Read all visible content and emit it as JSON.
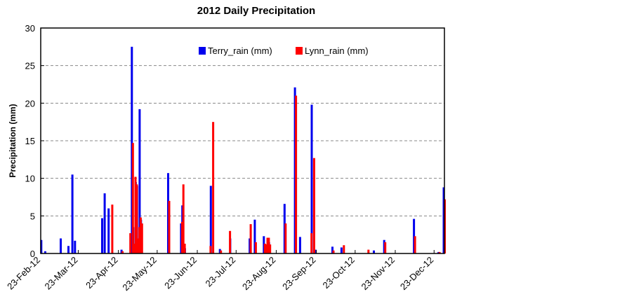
{
  "chart_data": {
    "type": "bar",
    "title": "2012 Daily Precipitation",
    "xlabel": "",
    "ylabel": "Precipitation (mm)",
    "ylim": [
      0,
      30
    ],
    "yticks": [
      0,
      5,
      10,
      15,
      20,
      25,
      30
    ],
    "xlim": [
      "2012-02-23",
      "2012-12-31"
    ],
    "xticks": [
      {
        "date": "2012-02-23",
        "label": "23-Feb-12"
      },
      {
        "date": "2012-03-23",
        "label": "23-Mar-12"
      },
      {
        "date": "2012-04-23",
        "label": "23-Apr-12"
      },
      {
        "date": "2012-05-23",
        "label": "23-May-12"
      },
      {
        "date": "2012-06-23",
        "label": "23-Jun-12"
      },
      {
        "date": "2012-07-23",
        "label": "23-Jul-12"
      },
      {
        "date": "2012-08-23",
        "label": "23-Aug-12"
      },
      {
        "date": "2012-09-23",
        "label": "23-Sep-12"
      },
      {
        "date": "2012-10-23",
        "label": "23-Oct-12"
      },
      {
        "date": "2012-11-23",
        "label": "23-Nov-12"
      },
      {
        "date": "2012-12-23",
        "label": "23-Dec-12"
      }
    ],
    "grid": "horizontal dashed",
    "legend_position": "top-center",
    "series": [
      {
        "name": "Terry_rain (mm)",
        "color": "#0000ee",
        "points": [
          {
            "date": "2012-02-24",
            "value": 1.8
          },
          {
            "date": "2012-02-27",
            "value": 0.3
          },
          {
            "date": "2012-03-10",
            "value": 2.0
          },
          {
            "date": "2012-03-16",
            "value": 1.0
          },
          {
            "date": "2012-03-19",
            "value": 10.5
          },
          {
            "date": "2012-03-21",
            "value": 1.7
          },
          {
            "date": "2012-04-11",
            "value": 4.7
          },
          {
            "date": "2012-04-13",
            "value": 8.0
          },
          {
            "date": "2012-04-16",
            "value": 6.0
          },
          {
            "date": "2012-04-26",
            "value": 0.5
          },
          {
            "date": "2012-05-04",
            "value": 27.5
          },
          {
            "date": "2012-05-05",
            "value": 3.5
          },
          {
            "date": "2012-05-07",
            "value": 9.5
          },
          {
            "date": "2012-05-08",
            "value": 9.0
          },
          {
            "date": "2012-05-10",
            "value": 19.2
          },
          {
            "date": "2012-05-11",
            "value": 4.5
          },
          {
            "date": "2012-06-01",
            "value": 10.7
          },
          {
            "date": "2012-06-11",
            "value": 4.0
          },
          {
            "date": "2012-06-12",
            "value": 6.4
          },
          {
            "date": "2012-06-14",
            "value": 0.7
          },
          {
            "date": "2012-07-04",
            "value": 9.0
          },
          {
            "date": "2012-07-11",
            "value": 0.6
          },
          {
            "date": "2012-07-19",
            "value": 2.0
          },
          {
            "date": "2012-08-03",
            "value": 2.0
          },
          {
            "date": "2012-08-07",
            "value": 4.5
          },
          {
            "date": "2012-08-14",
            "value": 2.3
          },
          {
            "date": "2012-08-17",
            "value": 1.5
          },
          {
            "date": "2012-08-18",
            "value": 1.5
          },
          {
            "date": "2012-08-30",
            "value": 6.6
          },
          {
            "date": "2012-09-07",
            "value": 22.1
          },
          {
            "date": "2012-09-11",
            "value": 2.2
          },
          {
            "date": "2012-09-20",
            "value": 19.8
          },
          {
            "date": "2012-09-23",
            "value": 0.5
          },
          {
            "date": "2012-10-06",
            "value": 0.9
          },
          {
            "date": "2012-10-13",
            "value": 0.8
          },
          {
            "date": "2012-11-07",
            "value": 0.4
          },
          {
            "date": "2012-11-15",
            "value": 1.8
          },
          {
            "date": "2012-12-08",
            "value": 4.6
          },
          {
            "date": "2012-12-27",
            "value": 0.2
          },
          {
            "date": "2012-12-31",
            "value": 8.8
          }
        ]
      },
      {
        "name": "Lynn_rain (mm)",
        "color": "#ff0000",
        "points": [
          {
            "date": "2012-04-18",
            "value": 6.5
          },
          {
            "date": "2012-04-26",
            "value": 0.3
          },
          {
            "date": "2012-05-02",
            "value": 2.7
          },
          {
            "date": "2012-05-04",
            "value": 14.7
          },
          {
            "date": "2012-05-05",
            "value": 1.3
          },
          {
            "date": "2012-05-06",
            "value": 10.2
          },
          {
            "date": "2012-05-07",
            "value": 9.2
          },
          {
            "date": "2012-05-08",
            "value": 2.0
          },
          {
            "date": "2012-05-09",
            "value": 3.5
          },
          {
            "date": "2012-05-10",
            "value": 4.8
          },
          {
            "date": "2012-05-11",
            "value": 4.0
          },
          {
            "date": "2012-06-01",
            "value": 7.0
          },
          {
            "date": "2012-06-11",
            "value": 4.2
          },
          {
            "date": "2012-06-12",
            "value": 9.2
          },
          {
            "date": "2012-06-13",
            "value": 1.3
          },
          {
            "date": "2012-07-03",
            "value": 1.0
          },
          {
            "date": "2012-07-05",
            "value": 17.5
          },
          {
            "date": "2012-07-11",
            "value": 0.4
          },
          {
            "date": "2012-07-18",
            "value": 3.0
          },
          {
            "date": "2012-08-03",
            "value": 3.9
          },
          {
            "date": "2012-08-07",
            "value": 1.5
          },
          {
            "date": "2012-08-14",
            "value": 1.3
          },
          {
            "date": "2012-08-15",
            "value": 1.2
          },
          {
            "date": "2012-08-16",
            "value": 2.1
          },
          {
            "date": "2012-08-17",
            "value": 2.1
          },
          {
            "date": "2012-08-18",
            "value": 1.2
          },
          {
            "date": "2012-08-30",
            "value": 4.0
          },
          {
            "date": "2012-09-07",
            "value": 21.0
          },
          {
            "date": "2012-09-19",
            "value": 2.7
          },
          {
            "date": "2012-09-21",
            "value": 12.7
          },
          {
            "date": "2012-10-06",
            "value": 0.4
          },
          {
            "date": "2012-10-14",
            "value": 1.1
          },
          {
            "date": "2012-11-02",
            "value": 0.5
          },
          {
            "date": "2012-11-15",
            "value": 1.5
          },
          {
            "date": "2012-12-08",
            "value": 2.3
          },
          {
            "date": "2012-12-27",
            "value": 0.2
          },
          {
            "date": "2012-12-31",
            "value": 7.2
          }
        ]
      }
    ]
  }
}
